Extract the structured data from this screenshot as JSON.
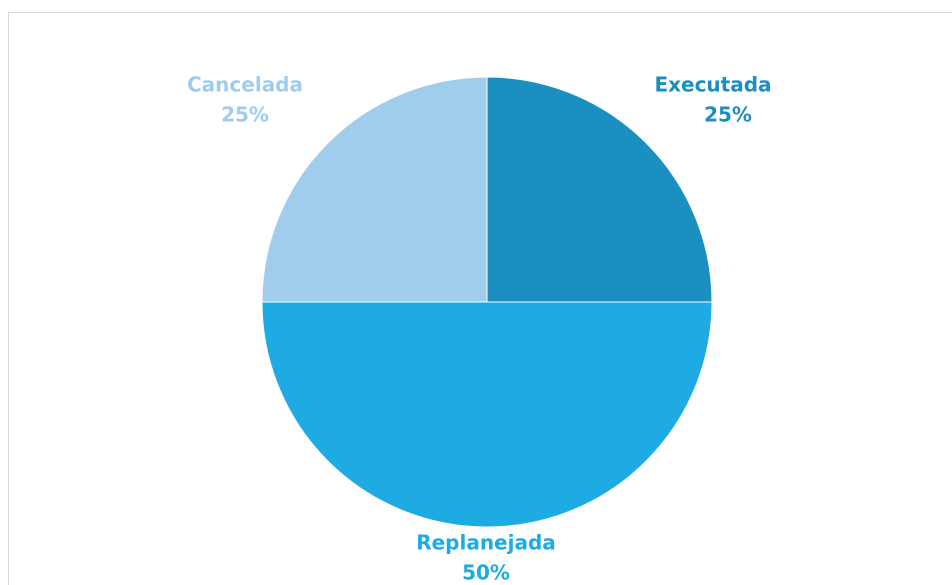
{
  "chart_data": {
    "type": "pie",
    "categories": [
      "Executada",
      "Replanejada",
      "Cancelada"
    ],
    "values": [
      25,
      50,
      25
    ],
    "value_labels": [
      "25%",
      "50%",
      "25%"
    ],
    "colors": [
      "#1a8fc0",
      "#1eaae2",
      "#a0cdec"
    ]
  }
}
